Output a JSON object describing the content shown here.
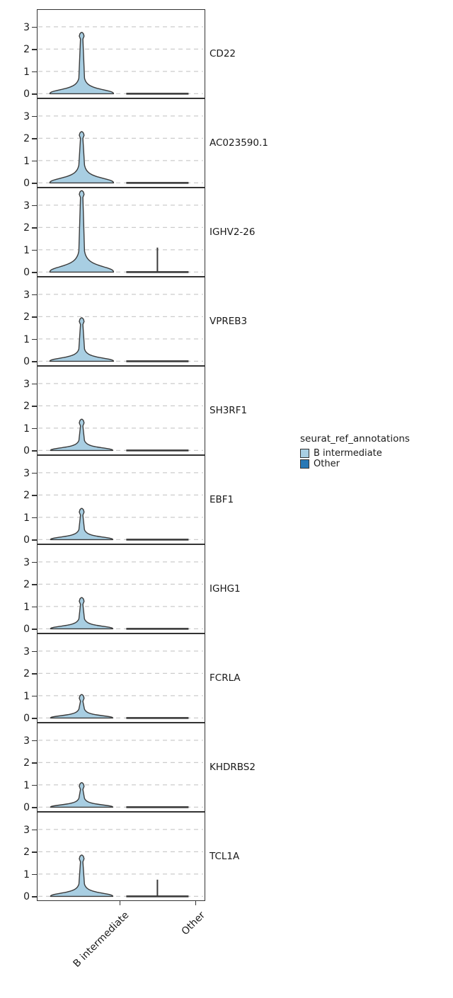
{
  "legend": {
    "title": "seurat_ref_annotations",
    "items": [
      {
        "label": "B intermediate",
        "color": "#a8cee2"
      },
      {
        "label": "Other",
        "color": "#2878b5"
      }
    ]
  },
  "chart_data": {
    "type": "violin",
    "title": "",
    "orientation": "stacked-panels",
    "categories": [
      "B intermediate",
      "Other"
    ],
    "legend_title": "seurat_ref_annotations",
    "legend_position": "right",
    "grid": "dashed-horizontal",
    "y_ticks": [
      0,
      1,
      2,
      3
    ],
    "ylim": [
      0,
      3.8
    ],
    "colors": {
      "b_intermediate_fill": "#a8cee2",
      "other_fill": "#2878b5",
      "outline": "#3b3b3b",
      "gridline": "#cccccc",
      "panel_border": "#333333"
    },
    "panels": [
      {
        "gene": "CD22",
        "b_intermediate": {
          "peak": 2.75,
          "body_top": 0.7,
          "half_width": 45
        },
        "other": {
          "peak": 0,
          "half_width": 44
        }
      },
      {
        "gene": "AC023590.1",
        "b_intermediate": {
          "peak": 2.3,
          "body_top": 0.8,
          "half_width": 45
        },
        "other": {
          "peak": 0,
          "half_width": 44
        }
      },
      {
        "gene": "IGHV2-26",
        "b_intermediate": {
          "peak": 3.65,
          "body_top": 0.95,
          "half_width": 45
        },
        "other": {
          "peak": 1.1,
          "half_width": 44
        }
      },
      {
        "gene": "VPREB3",
        "b_intermediate": {
          "peak": 1.95,
          "body_top": 0.55,
          "half_width": 45
        },
        "other": {
          "peak": 0,
          "half_width": 44
        }
      },
      {
        "gene": "SH3RF1",
        "b_intermediate": {
          "peak": 1.4,
          "body_top": 0.45,
          "half_width": 44
        },
        "other": {
          "peak": 0,
          "half_width": 44
        }
      },
      {
        "gene": "EBF1",
        "b_intermediate": {
          "peak": 1.4,
          "body_top": 0.45,
          "half_width": 44
        },
        "other": {
          "peak": 0,
          "half_width": 44
        }
      },
      {
        "gene": "IGHG1",
        "b_intermediate": {
          "peak": 1.4,
          "body_top": 0.45,
          "half_width": 44
        },
        "other": {
          "peak": 0,
          "half_width": 44
        }
      },
      {
        "gene": "FCRLA",
        "b_intermediate": {
          "peak": 1.05,
          "body_top": 0.4,
          "half_width": 44
        },
        "other": {
          "peak": 0,
          "half_width": 44
        }
      },
      {
        "gene": "KHDRBS2",
        "b_intermediate": {
          "peak": 1.1,
          "body_top": 0.4,
          "half_width": 44
        },
        "other": {
          "peak": 0,
          "half_width": 44
        }
      },
      {
        "gene": "TCL1A",
        "b_intermediate": {
          "peak": 1.85,
          "body_top": 0.55,
          "half_width": 44
        },
        "other": {
          "peak": 0.75,
          "half_width": 44
        }
      }
    ]
  }
}
